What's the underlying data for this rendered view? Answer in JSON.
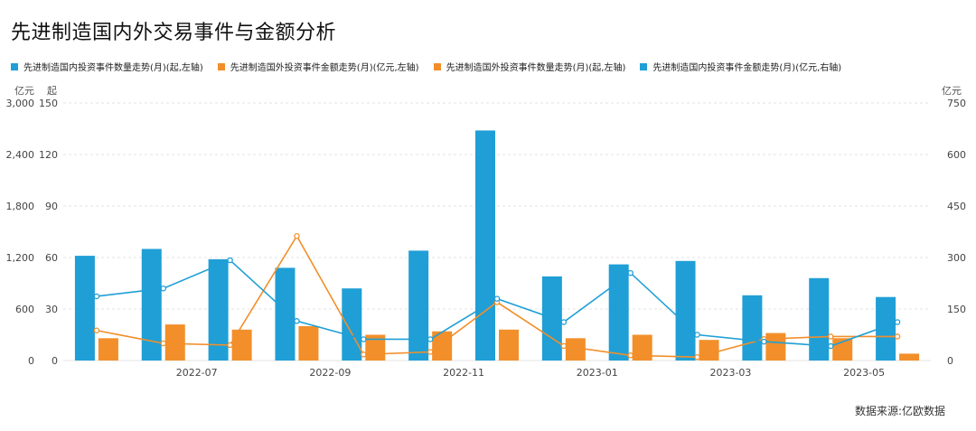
{
  "title": "先进制造国内外交易事件与金额分析",
  "source": "数据来源:亿欧数据",
  "units": {
    "left_amount": "亿元",
    "left_count": "起",
    "right_amount": "亿元"
  },
  "colors": {
    "blue": "#1f9fd6",
    "orange": "#f28f2a",
    "grid": "#e3e3e3",
    "axis_text": "#444444"
  },
  "chart_data": {
    "type": "bar",
    "categories": [
      "2022-06",
      "2022-07",
      "2022-08",
      "2022-09",
      "2022-10",
      "2022-11",
      "2022-12",
      "2023-01",
      "2023-02",
      "2023-03",
      "2023-04",
      "2023-05",
      "2023-06"
    ],
    "x_tick_labels": [
      "2022-07",
      "2022-09",
      "2022-11",
      "2023-01",
      "2023-03",
      "2023-05"
    ],
    "y_left_amount_ticks": [
      "0",
      "600",
      "1,200",
      "1,800",
      "2,400",
      "3,000"
    ],
    "y_left_count_ticks": [
      "0",
      "30",
      "60",
      "90",
      "120",
      "150"
    ],
    "y_right_ticks": [
      "0",
      "150",
      "300",
      "450",
      "600",
      "750"
    ],
    "axes": {
      "left_count_range": [
        0,
        150
      ],
      "left_amount_range": [
        0,
        3000
      ],
      "right_amount_range": [
        0,
        750
      ]
    },
    "series": [
      {
        "name": "先进制造国内投资事件数量走势(月)(起,左轴)",
        "kind": "bar",
        "color": "#1f9fd6",
        "axis": "left_count",
        "values": [
          61,
          65,
          59,
          54,
          42,
          64,
          134,
          49,
          56,
          58,
          38,
          48,
          37
        ]
      },
      {
        "name": "先进制造国外投资事件金额走势(月)(亿元,左轴)",
        "kind": "line",
        "color": "#f28f2a",
        "axis": "left_amount",
        "values": [
          350,
          200,
          180,
          1450,
          70,
          100,
          680,
          170,
          60,
          40,
          250,
          280,
          280
        ]
      },
      {
        "name": "先进制造国外投资事件数量走势(月)(起,左轴)",
        "kind": "bar",
        "color": "#f28f2a",
        "axis": "left_count",
        "values": [
          13,
          21,
          18,
          20,
          15,
          17,
          18,
          13,
          15,
          12,
          16,
          13,
          4
        ]
      },
      {
        "name": "先进制造国内投资事件金额走势(月)(亿元,右轴)",
        "kind": "line",
        "color": "#1f9fd6",
        "axis": "right_amount",
        "values": [
          187,
          210,
          292,
          115,
          62,
          62,
          180,
          112,
          255,
          75,
          55,
          42,
          112
        ]
      }
    ],
    "grid": true,
    "legend_position": "top-left"
  }
}
